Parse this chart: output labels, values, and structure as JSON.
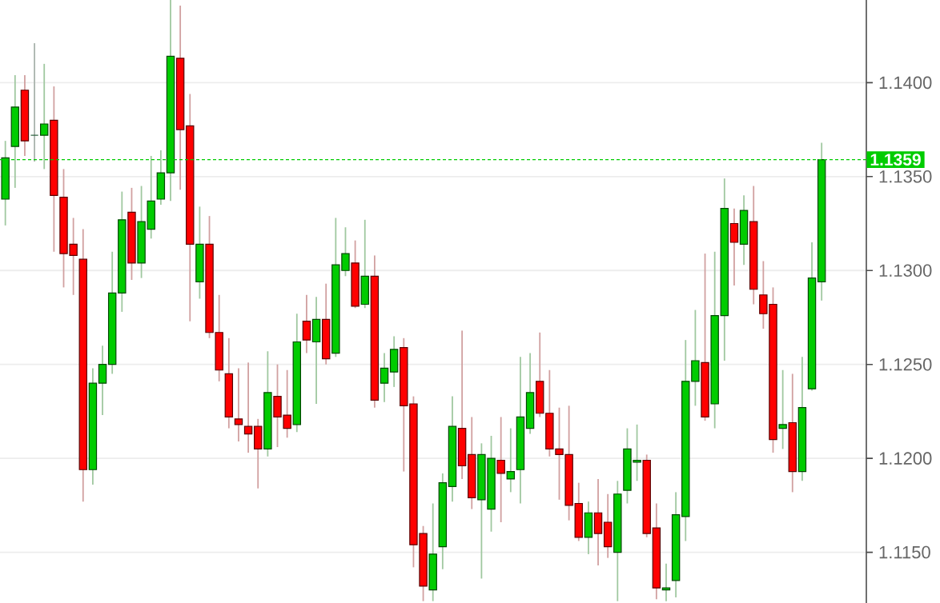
{
  "chart_data": {
    "type": "candlestick",
    "categories": [
      null,
      null,
      null,
      null,
      null,
      null,
      null,
      null,
      null,
      null,
      null,
      null,
      null,
      null,
      null,
      null,
      null,
      null,
      null,
      null,
      null,
      null,
      null,
      null,
      null,
      null,
      null,
      null,
      null,
      null,
      null,
      null,
      null,
      null,
      null,
      null,
      null,
      null,
      null,
      null,
      null,
      null,
      null,
      null,
      null,
      null,
      null,
      null,
      null,
      null,
      null,
      null,
      null,
      null,
      null,
      null,
      null,
      null,
      null,
      null,
      null,
      null,
      null,
      null,
      null,
      null,
      null,
      null,
      null,
      null,
      null,
      null,
      null,
      null,
      null,
      null,
      null,
      null,
      null,
      null,
      null,
      null,
      null,
      null,
      null
    ],
    "ohlc": [
      [
        1.1338,
        1.1369,
        1.1324,
        1.136
      ],
      [
        1.1366,
        1.1404,
        1.1344,
        1.1387
      ],
      [
        1.1396,
        1.1404,
        1.1361,
        1.1369
      ],
      [
        1.1372,
        1.1421,
        1.1358,
        1.1372
      ],
      [
        1.1372,
        1.141,
        1.1354,
        1.1378
      ],
      [
        1.138,
        1.1398,
        1.131,
        1.134
      ],
      [
        1.1339,
        1.1354,
        1.1291,
        1.1309
      ],
      [
        1.1314,
        1.1328,
        1.1287,
        1.1308
      ],
      [
        1.1306,
        1.1322,
        1.1177,
        1.1194
      ],
      [
        1.1194,
        1.1248,
        1.1186,
        1.124
      ],
      [
        1.124,
        1.126,
        1.1223,
        1.125
      ],
      [
        1.125,
        1.131,
        1.1245,
        1.1288
      ],
      [
        1.1288,
        1.1342,
        1.1278,
        1.1327
      ],
      [
        1.1331,
        1.1344,
        1.1295,
        1.1304
      ],
      [
        1.1304,
        1.1345,
        1.1296,
        1.1326
      ],
      [
        1.1322,
        1.1361,
        1.1317,
        1.1337
      ],
      [
        1.1338,
        1.1364,
        1.1335,
        1.1352
      ],
      [
        1.1352,
        1.1444,
        1.1337,
        1.1414
      ],
      [
        1.1413,
        1.1441,
        1.1343,
        1.1375
      ],
      [
        1.1377,
        1.1394,
        1.1273,
        1.1314
      ],
      [
        1.1294,
        1.1334,
        1.1285,
        1.1314
      ],
      [
        1.1314,
        1.1329,
        1.1264,
        1.1267
      ],
      [
        1.1267,
        1.1287,
        1.1241,
        1.1247
      ],
      [
        1.1245,
        1.1264,
        1.1216,
        1.1222
      ],
      [
        1.1221,
        1.1248,
        1.1209,
        1.1218
      ],
      [
        1.1217,
        1.1251,
        1.1203,
        1.1213
      ],
      [
        1.1217,
        1.1221,
        1.1184,
        1.1205
      ],
      [
        1.1205,
        1.1257,
        1.1201,
        1.1235
      ],
      [
        1.1233,
        1.125,
        1.1206,
        1.1222
      ],
      [
        1.1223,
        1.1247,
        1.1211,
        1.1216
      ],
      [
        1.1218,
        1.1277,
        1.1214,
        1.1262
      ],
      [
        1.1273,
        1.1287,
        1.1256,
        1.1263
      ],
      [
        1.1262,
        1.1286,
        1.1229,
        1.1274
      ],
      [
        1.1274,
        1.1293,
        1.125,
        1.1253
      ],
      [
        1.1256,
        1.1328,
        1.1254,
        1.1303
      ],
      [
        1.13,
        1.1323,
        1.1297,
        1.1309
      ],
      [
        1.1304,
        1.1316,
        1.128,
        1.1281
      ],
      [
        1.1282,
        1.1327,
        1.128,
        1.1297
      ],
      [
        1.1297,
        1.1308,
        1.1227,
        1.1231
      ],
      [
        1.124,
        1.1256,
        1.123,
        1.1248
      ],
      [
        1.1246,
        1.1265,
        1.1238,
        1.1258
      ],
      [
        1.1259,
        1.1264,
        1.1193,
        1.1228
      ],
      [
        1.1229,
        1.1233,
        1.1142,
        1.1154
      ],
      [
        1.116,
        1.1164,
        1.1124,
        1.1132
      ],
      [
        1.113,
        1.1176,
        1.1124,
        1.1149
      ],
      [
        1.1153,
        1.1192,
        1.1141,
        1.1187
      ],
      [
        1.1185,
        1.1233,
        1.1177,
        1.1217
      ],
      [
        1.1216,
        1.1268,
        1.1189,
        1.1196
      ],
      [
        1.1202,
        1.1222,
        1.1173,
        1.1179
      ],
      [
        1.1178,
        1.1208,
        1.1136,
        1.1202
      ],
      [
        1.1173,
        1.1212,
        1.1161,
        1.12
      ],
      [
        1.1199,
        1.1222,
        1.1166,
        1.1192
      ],
      [
        1.1189,
        1.1216,
        1.1182,
        1.1193
      ],
      [
        1.1194,
        1.1254,
        1.1176,
        1.1222
      ],
      [
        1.1216,
        1.1256,
        1.1213,
        1.1235
      ],
      [
        1.1241,
        1.1267,
        1.1222,
        1.1224
      ],
      [
        1.1224,
        1.1247,
        1.1201,
        1.1205
      ],
      [
        1.1205,
        1.1227,
        1.1178,
        1.1202
      ],
      [
        1.1202,
        1.1228,
        1.1167,
        1.1175
      ],
      [
        1.1176,
        1.1187,
        1.1156,
        1.1158
      ],
      [
        1.1158,
        1.1177,
        1.1149,
        1.1171
      ],
      [
        1.1171,
        1.1189,
        1.1143,
        1.116
      ],
      [
        1.1166,
        1.1181,
        1.1147,
        1.1153
      ],
      [
        1.115,
        1.1188,
        1.1124,
        1.1181
      ],
      [
        1.1183,
        1.1216,
        1.1176,
        1.1205
      ],
      [
        1.1198,
        1.1218,
        1.1188,
        1.1199
      ],
      [
        1.1199,
        1.1202,
        1.1158,
        1.116
      ],
      [
        1.1163,
        1.1176,
        1.1125,
        1.1131
      ],
      [
        1.113,
        1.1144,
        1.1124,
        1.1131
      ],
      [
        1.1135,
        1.1182,
        1.1126,
        1.117
      ],
      [
        1.1169,
        1.1263,
        1.1156,
        1.1241
      ],
      [
        1.1241,
        1.1279,
        1.1228,
        1.1252
      ],
      [
        1.1251,
        1.1309,
        1.122,
        1.1222
      ],
      [
        1.1229,
        1.131,
        1.1216,
        1.1276
      ],
      [
        1.1276,
        1.1349,
        1.1252,
        1.1333
      ],
      [
        1.1325,
        1.1333,
        1.1292,
        1.1315
      ],
      [
        1.1314,
        1.134,
        1.1303,
        1.1332
      ],
      [
        1.1326,
        1.1345,
        1.1282,
        1.129
      ],
      [
        1.1287,
        1.1305,
        1.1269,
        1.1277
      ],
      [
        1.1282,
        1.1291,
        1.1203,
        1.121
      ],
      [
        1.1216,
        1.1247,
        1.1205,
        1.1218
      ],
      [
        1.1219,
        1.1245,
        1.1182,
        1.1193
      ],
      [
        1.1193,
        1.1254,
        1.1188,
        1.1227
      ],
      [
        1.1237,
        1.1315,
        1.1236,
        1.1296
      ],
      [
        1.1294,
        1.1368,
        1.1284,
        1.1359
      ]
    ],
    "colors": [
      "#00cc00",
      "#00cc00",
      "#ff0000",
      "#336644",
      "#00cc00",
      "#ff0000",
      "#ff0000",
      "#ff0000",
      "#ff0000",
      "#00cc00",
      "#00cc00",
      "#00cc00",
      "#00cc00",
      "#ff0000",
      "#00cc00",
      "#00cc00",
      "#00cc00",
      "#00cc00",
      "#ff0000",
      "#ff0000",
      "#00cc00",
      "#ff0000",
      "#ff0000",
      "#ff0000",
      "#ff0000",
      "#ff0000",
      "#ff0000",
      "#00cc00",
      "#ff0000",
      "#ff0000",
      "#00cc00",
      "#ff0000",
      "#00cc00",
      "#ff0000",
      "#00cc00",
      "#00cc00",
      "#ff0000",
      "#00cc00",
      "#ff0000",
      "#00cc00",
      "#00cc00",
      "#ff0000",
      "#ff0000",
      "#ff0000",
      "#00cc00",
      "#00cc00",
      "#00cc00",
      "#ff0000",
      "#ff0000",
      "#00cc00",
      "#00cc00",
      "#ff0000",
      "#00cc00",
      "#00cc00",
      "#00cc00",
      "#ff0000",
      "#ff0000",
      "#ff0000",
      "#ff0000",
      "#ff0000",
      "#00cc00",
      "#ff0000",
      "#ff0000",
      "#00cc00",
      "#00cc00",
      "#00cc00",
      "#ff0000",
      "#ff0000",
      "#00cc00",
      "#00cc00",
      "#00cc00",
      "#00cc00",
      "#ff0000",
      "#00cc00",
      "#00cc00",
      "#ff0000",
      "#00cc00",
      "#ff0000",
      "#ff0000",
      "#ff0000",
      "#00cc00",
      "#ff0000",
      "#00cc00",
      "#00cc00",
      "#00cc00"
    ],
    "ylim": [
      1.1123,
      1.1444
    ],
    "yticks": [
      {
        "value": 1.115,
        "label": "1.1150"
      },
      {
        "value": 1.12,
        "label": "1.1200"
      },
      {
        "value": 1.125,
        "label": "1.1250"
      },
      {
        "value": 1.13,
        "label": "1.1300"
      },
      {
        "value": 1.135,
        "label": "1.1350"
      },
      {
        "value": 1.14,
        "label": "1.1400"
      }
    ],
    "tick_labels": "y",
    "grid": "y",
    "ref_lines": [
      {
        "axis": "y",
        "value": 1.1359,
        "label": "1.1359",
        "color": "#00cc00",
        "line_style": "dotted"
      }
    ]
  }
}
